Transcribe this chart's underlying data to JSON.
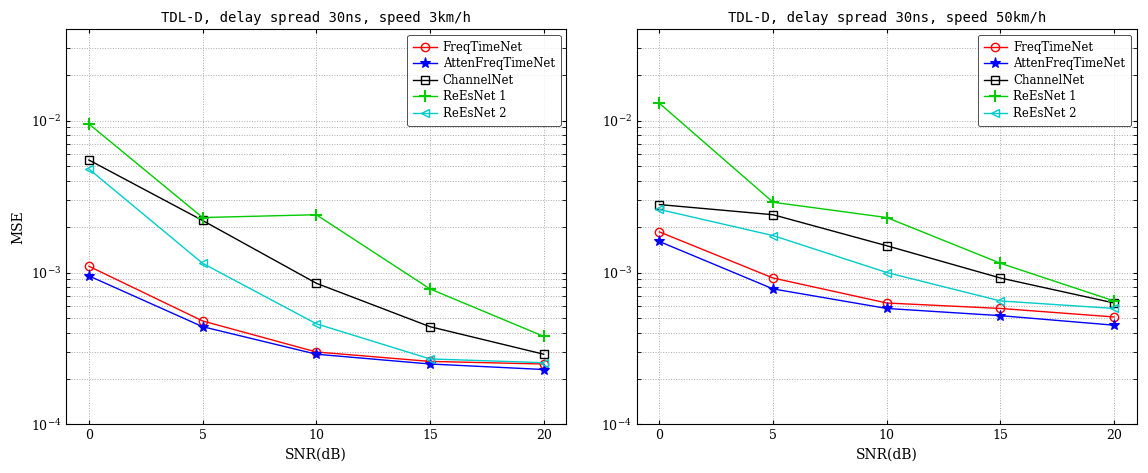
{
  "snr": [
    0,
    5,
    10,
    15,
    20
  ],
  "title1": "TDL-D, delay spread 30ns, speed 3km/h",
  "title2": "TDL-D, delay spread 30ns, speed 50km/h",
  "xlabel": "SNR(dB)",
  "ylabel": "MSE",
  "ylim_low": 0.0001,
  "ylim_high": 0.04,
  "chart1": {
    "FreqTimeNet": [
      0.0011,
      0.00048,
      0.0003,
      0.00026,
      0.00025
    ],
    "AttenFreqTimeNet": [
      0.00095,
      0.00044,
      0.00029,
      0.00025,
      0.00023
    ],
    "ChannelNet": [
      0.0055,
      0.0022,
      0.00085,
      0.00044,
      0.00029
    ],
    "ReEsNet1": [
      0.0095,
      0.0023,
      0.0024,
      0.00078,
      0.00038
    ],
    "ReEsNet2": [
      0.0048,
      0.00115,
      0.00046,
      0.00027,
      0.000255
    ]
  },
  "chart2": {
    "FreqTimeNet": [
      0.00185,
      0.00092,
      0.00063,
      0.00058,
      0.00051
    ],
    "AttenFreqTimeNet": [
      0.0016,
      0.00078,
      0.00058,
      0.00052,
      0.00045
    ],
    "ChannelNet": [
      0.0028,
      0.0024,
      0.0015,
      0.00092,
      0.00063
    ],
    "ReEsNet1": [
      0.013,
      0.0029,
      0.0023,
      0.00115,
      0.00065
    ],
    "ReEsNet2": [
      0.0026,
      0.00175,
      0.001,
      0.00065,
      0.00058
    ]
  },
  "colors": {
    "FreqTimeNet": "#ff0000",
    "AttenFreqTimeNet": "#0000ff",
    "ChannelNet": "#000000",
    "ReEsNet1": "#00cc00",
    "ReEsNet2": "#00cccc"
  },
  "markers": {
    "FreqTimeNet": "o",
    "AttenFreqTimeNet": "*",
    "ChannelNet": "s",
    "ReEsNet1": "+",
    "ReEsNet2": "<"
  },
  "legend_labels": [
    "FreqTimeNet",
    "AttenFreqTimeNet",
    "ChannelNet",
    "ReEsNet 1",
    "ReEsNet 2"
  ],
  "series_keys": [
    "FreqTimeNet",
    "AttenFreqTimeNet",
    "ChannelNet",
    "ReEsNet1",
    "ReEsNet2"
  ]
}
